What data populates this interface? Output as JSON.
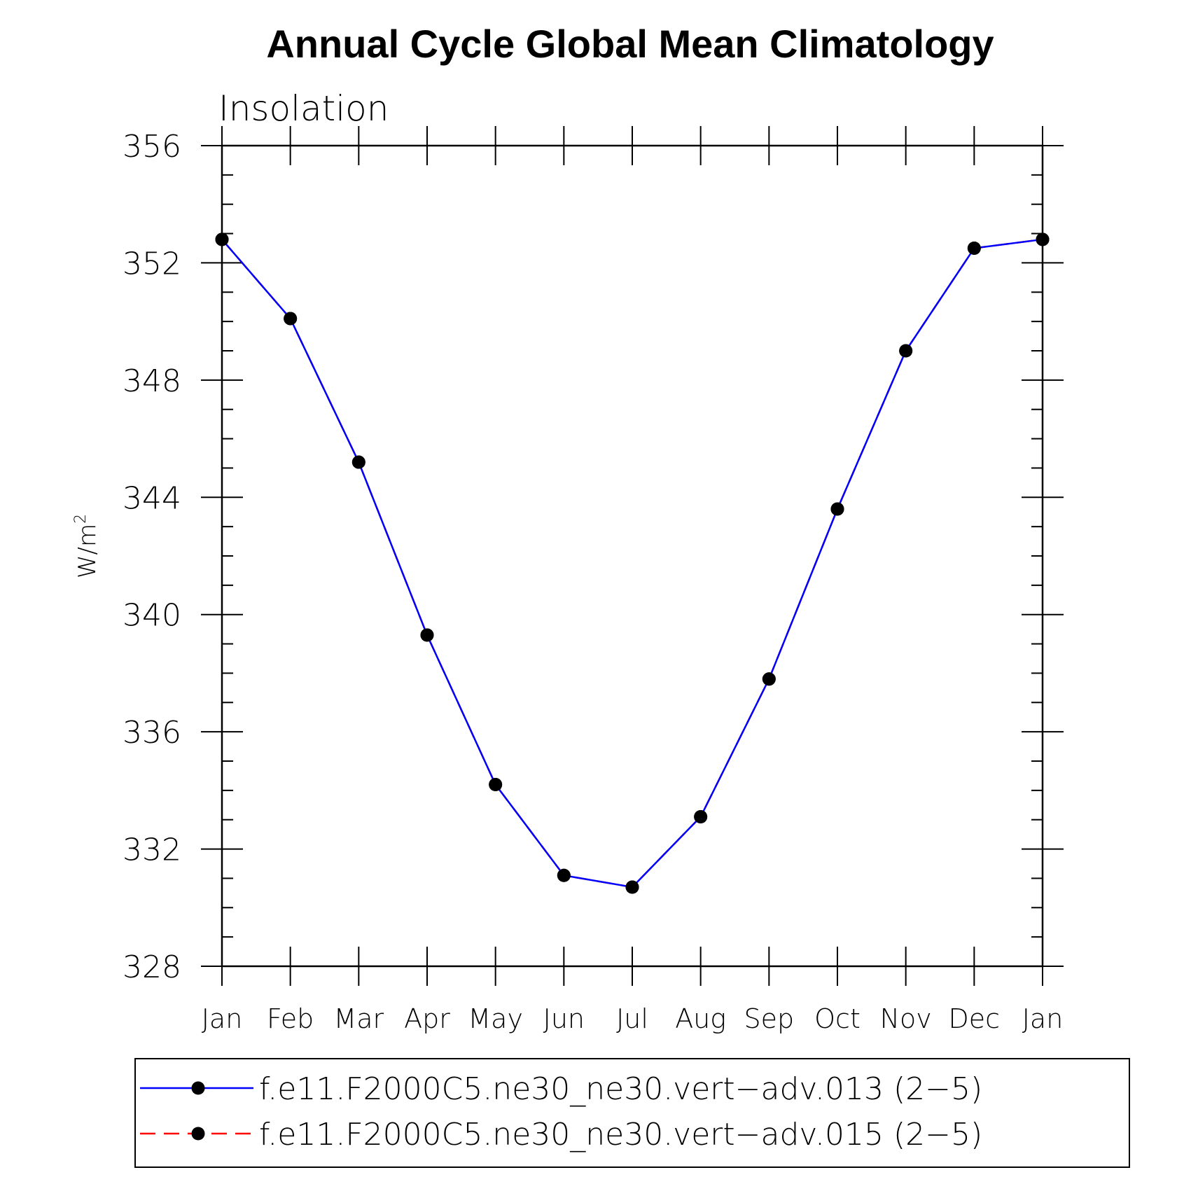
{
  "chart_data": {
    "type": "line",
    "title": "Annual Cycle Global Mean Climatology",
    "subtitle": "Insolation",
    "ylabel_base": "W/m",
    "ylabel_sup": "2",
    "categories": [
      "Jan",
      "Feb",
      "Mar",
      "Apr",
      "May",
      "Jun",
      "Jul",
      "Aug",
      "Sep",
      "Oct",
      "Nov",
      "Dec",
      "Jan"
    ],
    "yticks": [
      "356",
      "352",
      "348",
      "344",
      "340",
      "336",
      "332",
      "328"
    ],
    "ylim": [
      328,
      356
    ],
    "grid": false,
    "legend_position": "bottom",
    "series": [
      {
        "name": "f.e11.F2000C5.ne30_ne30.vert−adv.013 (2−5)",
        "color": "#0000ff",
        "line_style": "solid",
        "marker": "filled-circle",
        "values": [
          352.8,
          350.1,
          345.2,
          339.3,
          334.2,
          331.1,
          330.7,
          333.1,
          337.8,
          343.6,
          349.0,
          352.5,
          352.8
        ]
      },
      {
        "name": "f.e11.F2000C5.ne30_ne30.vert−adv.015 (2−5)",
        "color": "#ff0000",
        "line_style": "dashed",
        "marker": "filled-circle",
        "values": [
          352.8,
          350.1,
          345.2,
          339.3,
          334.2,
          331.1,
          330.7,
          333.1,
          337.8,
          343.6,
          349.0,
          352.5,
          352.8
        ]
      }
    ]
  }
}
